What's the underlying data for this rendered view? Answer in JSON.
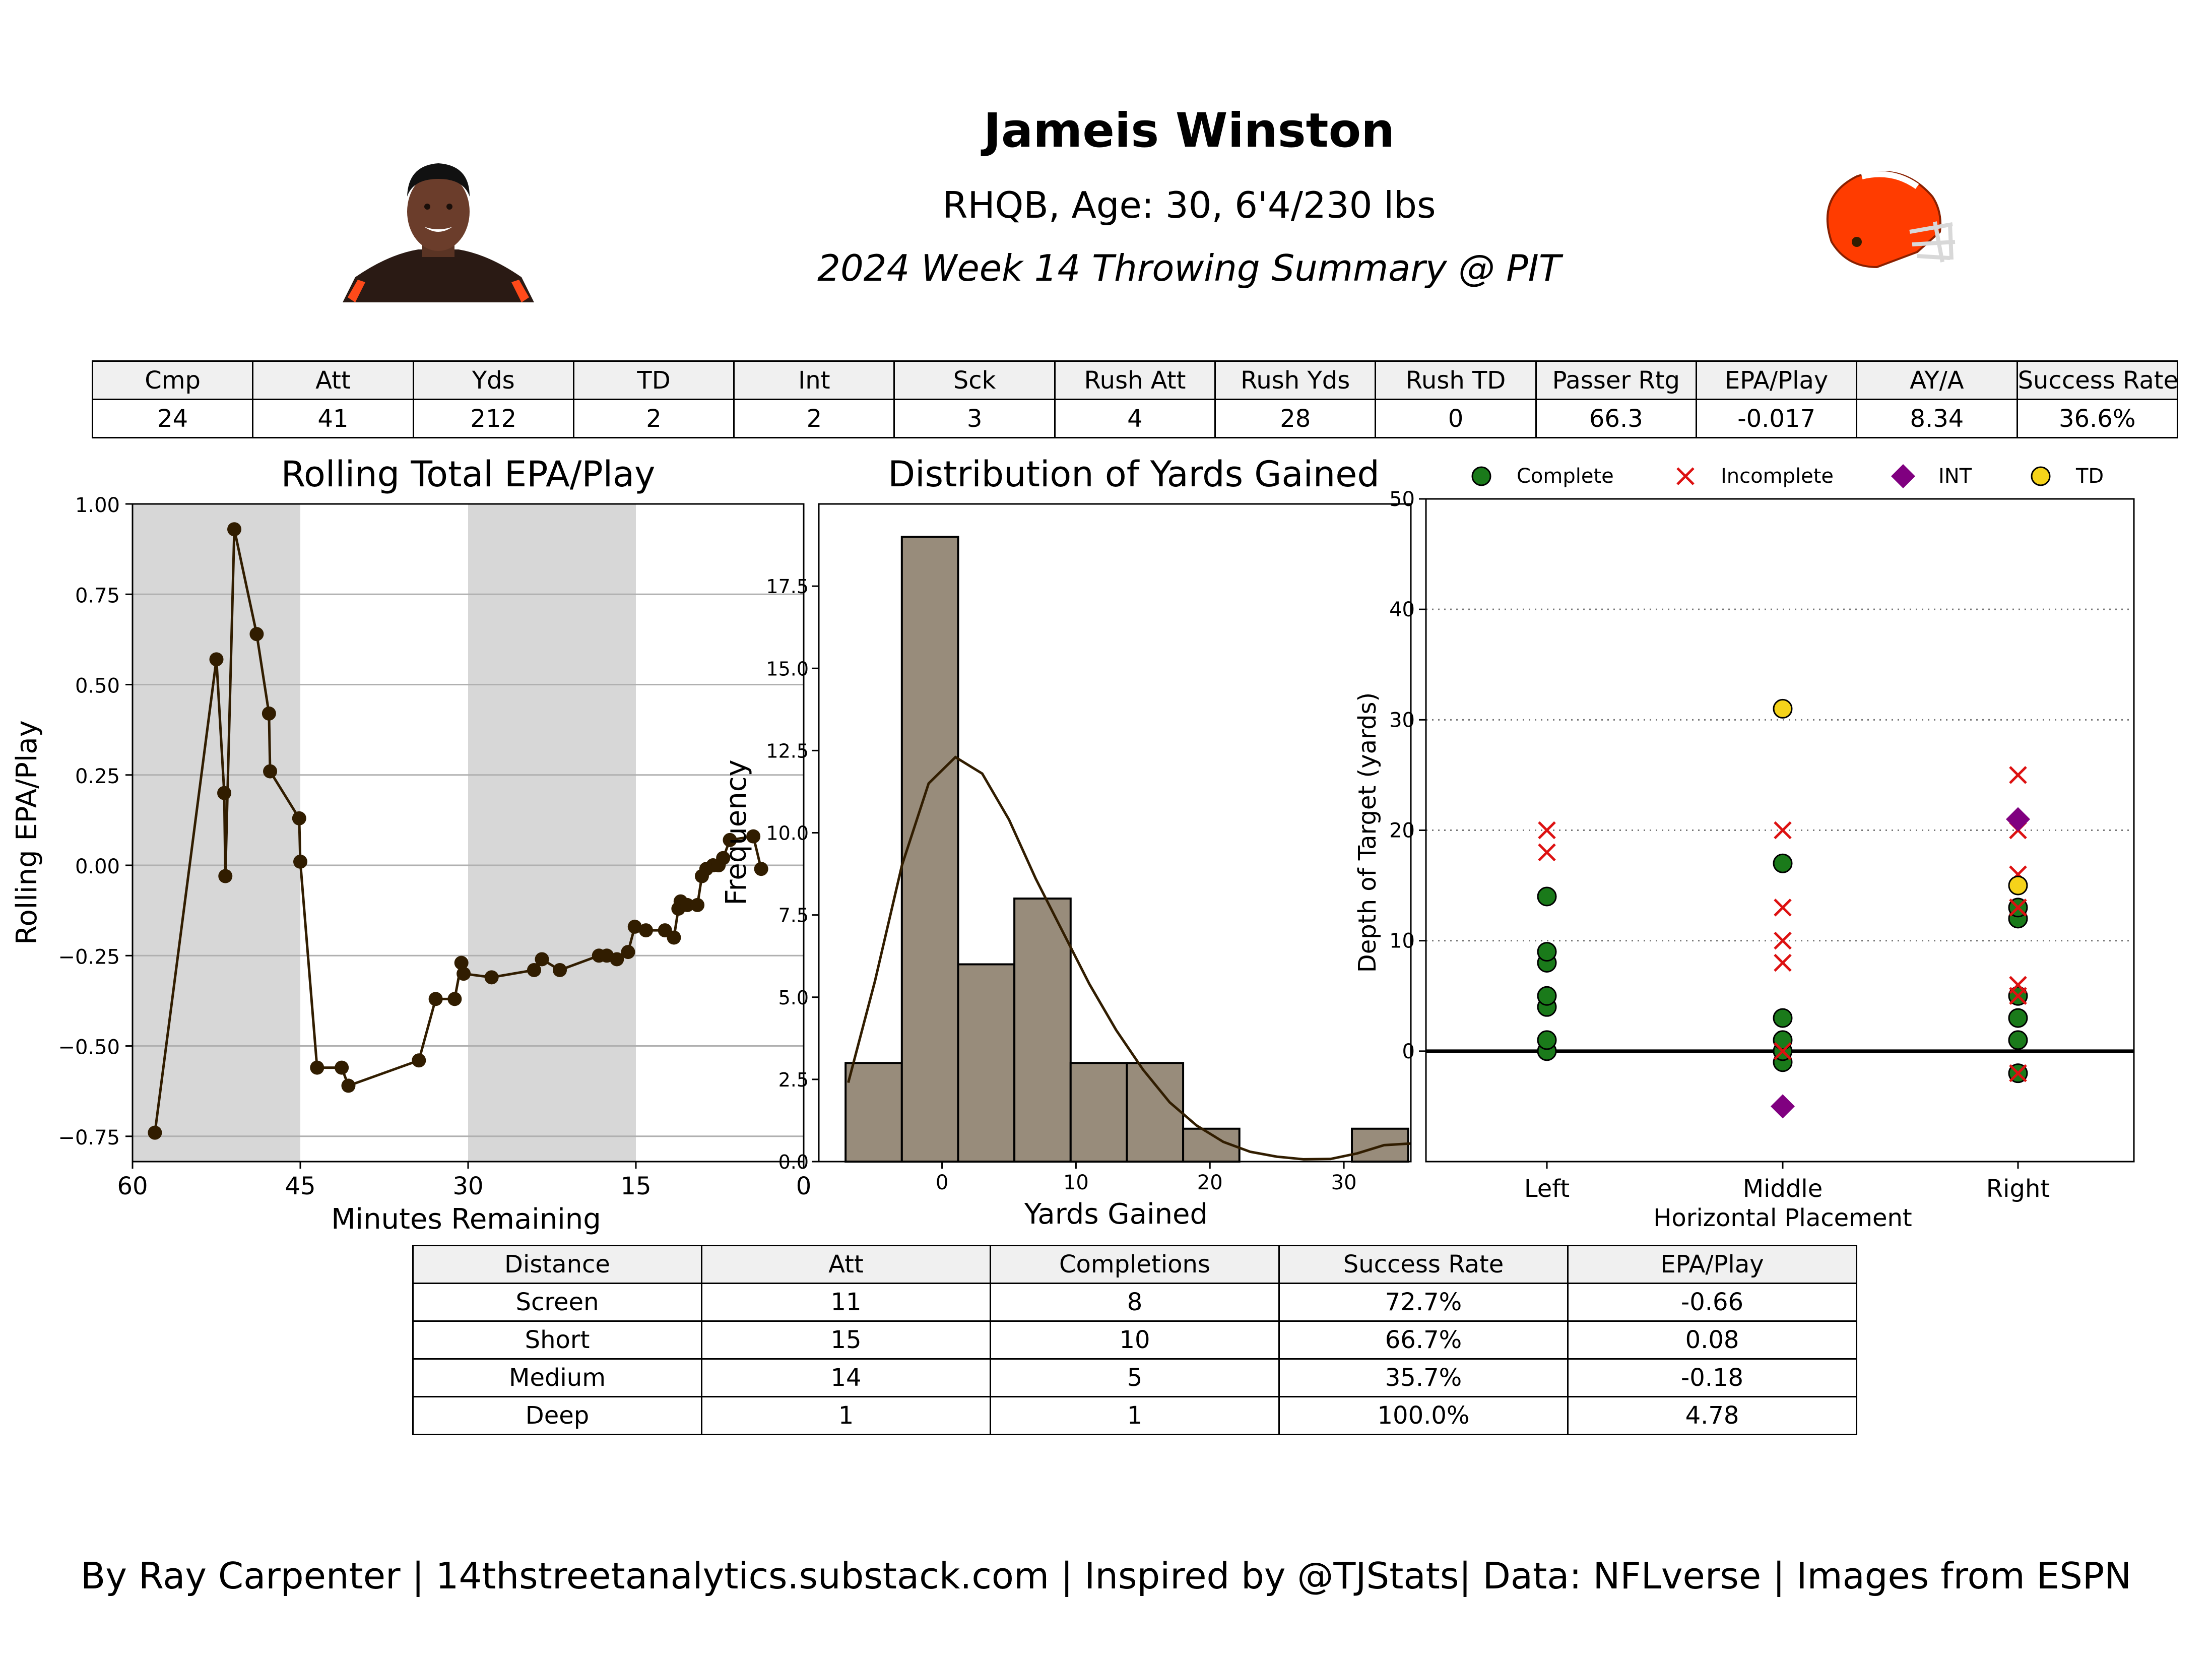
{
  "header": {
    "player_name": "Jameis Winston",
    "player_info": "RHQB, Age: 30, 6'4/230 lbs",
    "game_summary": "2024 Week 14 Throwing Summary @ PIT"
  },
  "colors": {
    "primary": "#311d00",
    "fill": "#988c7b",
    "complete": "#1a7a1a",
    "incomplete": "#dd1111",
    "int": "#800080",
    "td": "#f5d31a",
    "helmet": "#ff3c00"
  },
  "stat_table": {
    "headers": [
      "Cmp",
      "Att",
      "Yds",
      "TD",
      "Int",
      "Sck",
      "Rush Att",
      "Rush Yds",
      "Rush TD",
      "Passer Rtg",
      "EPA/Play",
      "AY/A",
      "Success Rate"
    ],
    "values": [
      "24",
      "41",
      "212",
      "2",
      "2",
      "3",
      "4",
      "28",
      "0",
      "66.3",
      "-0.017",
      "8.34",
      "36.6%"
    ]
  },
  "distance_table": {
    "headers": [
      "Distance",
      "Att",
      "Completions",
      "Success Rate",
      "EPA/Play"
    ],
    "rows": [
      [
        "Screen",
        "11",
        "8",
        "72.7%",
        "-0.66"
      ],
      [
        "Short",
        "15",
        "10",
        "66.7%",
        "0.08"
      ],
      [
        "Medium",
        "14",
        "5",
        "35.7%",
        "-0.18"
      ],
      [
        "Deep",
        "1",
        "1",
        "100.0%",
        "4.78"
      ]
    ]
  },
  "footer": "By Ray Carpenter | 14thstreetanalytics.substack.com | Inspired by @TJStats| Data: NFLverse | Images from ESPN",
  "chart_data": [
    {
      "type": "line",
      "title": "Rolling Total EPA/Play",
      "xlabel": "Minutes Remaining",
      "ylabel": "Rolling EPA/Play",
      "xlim": [
        60,
        0
      ],
      "ylim": [
        -0.82,
        1.0
      ],
      "xticks": [
        "60",
        "45",
        "30",
        "15",
        "0"
      ],
      "yticks": [
        "−0.75",
        "−0.50",
        "−0.25",
        "0.00",
        "0.25",
        "0.50",
        "0.75",
        "1.00"
      ],
      "shaded_x_ranges": [
        [
          60,
          45
        ],
        [
          30,
          15
        ]
      ],
      "grid": "horizontal",
      "points": [
        [
          58,
          -0.74
        ],
        [
          52.5,
          0.57
        ],
        [
          51.8,
          0.2
        ],
        [
          51.7,
          -0.03
        ],
        [
          50.9,
          0.93
        ],
        [
          48.9,
          0.64
        ],
        [
          47.8,
          0.42
        ],
        [
          47.7,
          0.26
        ],
        [
          45.1,
          0.13
        ],
        [
          45.0,
          0.01
        ],
        [
          43.5,
          -0.56
        ],
        [
          41.3,
          -0.56
        ],
        [
          40.7,
          -0.61
        ],
        [
          34.4,
          -0.54
        ],
        [
          32.9,
          -0.37
        ],
        [
          31.2,
          -0.37
        ],
        [
          30.6,
          -0.27
        ],
        [
          30.4,
          -0.3
        ],
        [
          27.9,
          -0.31
        ],
        [
          24.1,
          -0.29
        ],
        [
          23.4,
          -0.26
        ],
        [
          21.8,
          -0.29
        ],
        [
          18.3,
          -0.25
        ],
        [
          17.6,
          -0.25
        ],
        [
          16.7,
          -0.26
        ],
        [
          15.7,
          -0.24
        ],
        [
          15.1,
          -0.17
        ],
        [
          14.1,
          -0.18
        ],
        [
          12.4,
          -0.18
        ],
        [
          11.6,
          -0.2
        ],
        [
          11.2,
          -0.12
        ],
        [
          11.0,
          -0.1
        ],
        [
          10.4,
          -0.11
        ],
        [
          9.5,
          -0.11
        ],
        [
          9.1,
          -0.03
        ],
        [
          8.7,
          -0.01
        ],
        [
          8.1,
          0.0
        ],
        [
          7.6,
          0.0
        ],
        [
          7.2,
          0.02
        ],
        [
          6.6,
          0.07
        ],
        [
          4.5,
          0.08
        ],
        [
          3.8,
          -0.01
        ]
      ]
    },
    {
      "type": "bar",
      "title": "Distribution of Yards Gained",
      "xlabel": "Yards Gained",
      "ylabel": "Frequency",
      "ylim": [
        0,
        20
      ],
      "xticks": [
        "0",
        "10",
        "20",
        "30"
      ],
      "yticks": [
        "0.0",
        "2.5",
        "5.0",
        "7.5",
        "10.0",
        "12.5",
        "15.0",
        "17.5"
      ],
      "bin_edges": [
        -7.2,
        -3.0,
        1.2,
        5.4,
        9.6,
        13.8,
        18.0,
        22.2,
        26.4,
        30.6,
        34.8
      ],
      "values": [
        3,
        19,
        6,
        8,
        3,
        3,
        1,
        0,
        0,
        1
      ],
      "kde": [
        [
          -7,
          2.4
        ],
        [
          -5,
          5.5
        ],
        [
          -3,
          9.0
        ],
        [
          -1,
          11.5
        ],
        [
          1,
          12.3
        ],
        [
          3,
          11.8
        ],
        [
          5,
          10.4
        ],
        [
          7,
          8.6
        ],
        [
          9,
          7.0
        ],
        [
          11,
          5.4
        ],
        [
          13,
          4.0
        ],
        [
          15,
          2.8
        ],
        [
          17,
          1.8
        ],
        [
          19,
          1.1
        ],
        [
          21,
          0.6
        ],
        [
          23,
          0.3
        ],
        [
          25,
          0.15
        ],
        [
          27,
          0.07
        ],
        [
          29,
          0.08
        ],
        [
          31,
          0.25
        ],
        [
          33,
          0.5
        ],
        [
          35,
          0.55
        ]
      ]
    },
    {
      "type": "scatter",
      "xlabel": "Horizontal Placement",
      "ylabel": "Depth of Target (yards)",
      "categories": [
        "Left",
        "Middle",
        "Right"
      ],
      "ylim": [
        -10,
        50
      ],
      "yticks": [
        "0",
        "10",
        "20",
        "30",
        "40",
        "50"
      ],
      "grid": "horizontal-dotted",
      "legend_position": "top",
      "series": [
        {
          "name": "Complete",
          "points": [
            [
              "Left",
              0
            ],
            [
              "Left",
              1
            ],
            [
              "Left",
              4
            ],
            [
              "Left",
              5
            ],
            [
              "Left",
              8
            ],
            [
              "Left",
              9
            ],
            [
              "Left",
              14
            ],
            [
              "Middle",
              -1
            ],
            [
              "Middle",
              0
            ],
            [
              "Middle",
              1
            ],
            [
              "Middle",
              3
            ],
            [
              "Middle",
              17
            ],
            [
              "Right",
              -2
            ],
            [
              "Right",
              1
            ],
            [
              "Right",
              3
            ],
            [
              "Right",
              5
            ],
            [
              "Right",
              12
            ],
            [
              "Right",
              13
            ]
          ]
        },
        {
          "name": "Incomplete",
          "points": [
            [
              "Left",
              18
            ],
            [
              "Left",
              20
            ],
            [
              "Middle",
              0
            ],
            [
              "Middle",
              8
            ],
            [
              "Middle",
              10
            ],
            [
              "Middle",
              13
            ],
            [
              "Middle",
              20
            ],
            [
              "Right",
              -2
            ],
            [
              "Right",
              5
            ],
            [
              "Right",
              6
            ],
            [
              "Right",
              13
            ],
            [
              "Right",
              16
            ],
            [
              "Right",
              20
            ],
            [
              "Right",
              25
            ]
          ]
        },
        {
          "name": "INT",
          "points": [
            [
              "Middle",
              -5
            ],
            [
              "Right",
              21
            ]
          ]
        },
        {
          "name": "TD",
          "points": [
            [
              "Middle",
              31
            ],
            [
              "Right",
              15
            ]
          ]
        }
      ]
    }
  ]
}
